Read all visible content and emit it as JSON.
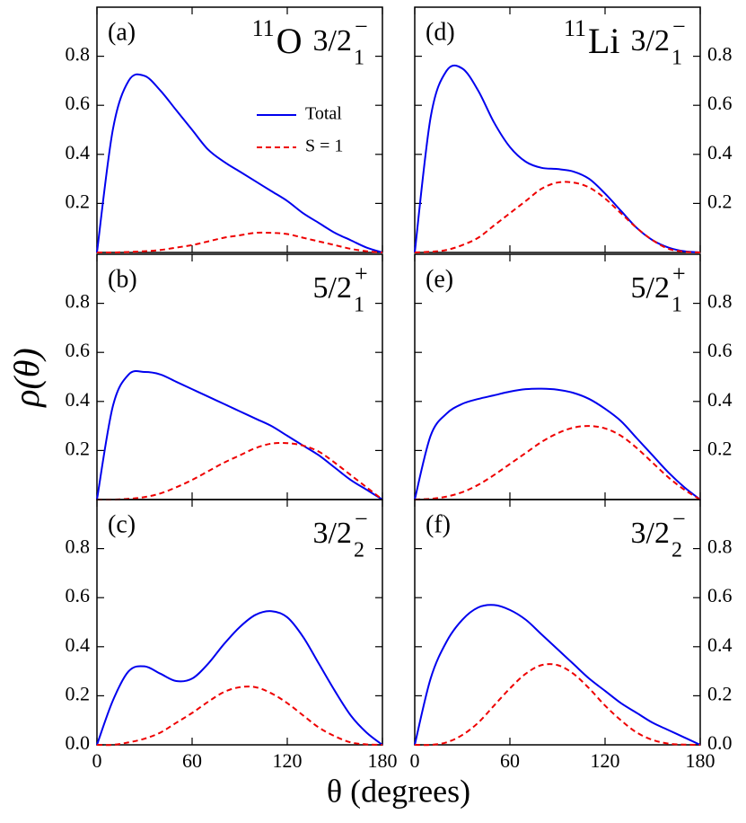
{
  "chart_data": [
    {
      "type": "line",
      "panel": "(a)",
      "nucleus": {
        "mass": "11",
        "symbol": "O"
      },
      "state": {
        "j": "3/2",
        "index": "1",
        "parity": "−"
      },
      "x": [
        0,
        10,
        20,
        30,
        40,
        50,
        60,
        70,
        80,
        90,
        100,
        110,
        120,
        130,
        140,
        150,
        160,
        170,
        180
      ],
      "series": [
        {
          "name": "Total",
          "color": "#0000ee",
          "dash": false,
          "values": [
            0,
            0.5,
            0.7,
            0.72,
            0.66,
            0.58,
            0.5,
            0.42,
            0.37,
            0.33,
            0.29,
            0.25,
            0.21,
            0.16,
            0.12,
            0.08,
            0.05,
            0.02,
            0
          ]
        },
        {
          "name": "S = 1",
          "color": "#ee0000",
          "dash": true,
          "values": [
            0,
            0,
            0.002,
            0.005,
            0.01,
            0.02,
            0.03,
            0.045,
            0.06,
            0.07,
            0.08,
            0.08,
            0.075,
            0.06,
            0.045,
            0.03,
            0.015,
            0.005,
            0
          ]
        }
      ],
      "xlim": [
        0,
        180
      ],
      "xticks": [
        0,
        60,
        120,
        180
      ],
      "xtick_labels": false,
      "ylim": [
        0,
        1.0
      ],
      "yticks": [
        0.2,
        0.4,
        0.6,
        0.8
      ],
      "yaxis_side": "left",
      "legend": "upper right"
    },
    {
      "type": "line",
      "panel": "(b)",
      "state": {
        "j": "5/2",
        "index": "1",
        "parity": "+"
      },
      "x": [
        0,
        10,
        20,
        30,
        40,
        50,
        60,
        70,
        80,
        90,
        100,
        110,
        120,
        130,
        140,
        150,
        160,
        170,
        180
      ],
      "series": [
        {
          "color": "#0000ee",
          "dash": false,
          "values": [
            0,
            0.38,
            0.51,
            0.52,
            0.51,
            0.48,
            0.45,
            0.42,
            0.39,
            0.36,
            0.33,
            0.3,
            0.26,
            0.22,
            0.18,
            0.13,
            0.08,
            0.04,
            0
          ]
        },
        {
          "color": "#ee0000",
          "dash": true,
          "values": [
            0,
            0,
            0.003,
            0.01,
            0.025,
            0.05,
            0.08,
            0.115,
            0.15,
            0.18,
            0.21,
            0.228,
            0.23,
            0.22,
            0.195,
            0.15,
            0.1,
            0.05,
            0
          ]
        }
      ],
      "xlim": [
        0,
        180
      ],
      "xticks": [
        0,
        60,
        120,
        180
      ],
      "xtick_labels": false,
      "ylim": [
        0,
        1.0
      ],
      "yticks": [
        0.2,
        0.4,
        0.6,
        0.8
      ],
      "yaxis_side": "left"
    },
    {
      "type": "line",
      "panel": "(c)",
      "state": {
        "j": "3/2",
        "index": "2",
        "parity": "−"
      },
      "x": [
        0,
        10,
        20,
        30,
        40,
        50,
        60,
        70,
        80,
        90,
        100,
        110,
        120,
        130,
        140,
        150,
        160,
        170,
        180
      ],
      "series": [
        {
          "color": "#0000ee",
          "dash": false,
          "values": [
            0,
            0.18,
            0.3,
            0.32,
            0.29,
            0.26,
            0.27,
            0.33,
            0.41,
            0.48,
            0.53,
            0.545,
            0.52,
            0.44,
            0.33,
            0.22,
            0.12,
            0.05,
            0
          ]
        },
        {
          "color": "#ee0000",
          "dash": true,
          "values": [
            0,
            0,
            0.01,
            0.025,
            0.05,
            0.09,
            0.13,
            0.175,
            0.215,
            0.235,
            0.235,
            0.21,
            0.17,
            0.12,
            0.07,
            0.035,
            0.01,
            0.002,
            0
          ]
        }
      ],
      "xlim": [
        0,
        180
      ],
      "xticks": [
        0,
        60,
        120,
        180
      ],
      "xtick_labels": true,
      "ylim": [
        0,
        1.0
      ],
      "yticks": [
        {
          "value": 0,
          "label": "0.0"
        },
        0.2,
        0.4,
        0.6,
        0.8
      ],
      "yaxis_side": "left"
    },
    {
      "type": "line",
      "panel": "(d)",
      "nucleus": {
        "mass": "11",
        "symbol": "Li"
      },
      "state": {
        "j": "3/2",
        "index": "1",
        "parity": "−"
      },
      "x": [
        0,
        10,
        20,
        30,
        40,
        50,
        60,
        70,
        80,
        90,
        100,
        110,
        120,
        130,
        140,
        150,
        160,
        170,
        180
      ],
      "series": [
        {
          "color": "#0000ee",
          "dash": false,
          "values": [
            0,
            0.55,
            0.74,
            0.75,
            0.66,
            0.53,
            0.43,
            0.37,
            0.345,
            0.34,
            0.33,
            0.3,
            0.24,
            0.17,
            0.1,
            0.05,
            0.02,
            0.005,
            0
          ]
        },
        {
          "color": "#ee0000",
          "dash": true,
          "values": [
            0,
            0.003,
            0.01,
            0.03,
            0.06,
            0.11,
            0.16,
            0.21,
            0.26,
            0.285,
            0.285,
            0.265,
            0.22,
            0.16,
            0.1,
            0.05,
            0.015,
            0.003,
            0
          ]
        }
      ],
      "xlim": [
        0,
        180
      ],
      "xticks": [
        0,
        60,
        120,
        180
      ],
      "xtick_labels": false,
      "ylim": [
        0,
        1.0
      ],
      "yticks": [
        0.2,
        0.4,
        0.6,
        0.8
      ],
      "yaxis_side": "right"
    },
    {
      "type": "line",
      "panel": "(e)",
      "state": {
        "j": "5/2",
        "index": "1",
        "parity": "+"
      },
      "x": [
        0,
        10,
        20,
        30,
        40,
        50,
        60,
        70,
        80,
        90,
        100,
        110,
        120,
        130,
        140,
        150,
        160,
        170,
        180
      ],
      "series": [
        {
          "color": "#0000ee",
          "dash": false,
          "values": [
            0,
            0.26,
            0.35,
            0.39,
            0.41,
            0.425,
            0.44,
            0.45,
            0.452,
            0.448,
            0.435,
            0.41,
            0.37,
            0.32,
            0.25,
            0.18,
            0.11,
            0.05,
            0
          ]
        },
        {
          "color": "#ee0000",
          "dash": true,
          "values": [
            0,
            0.003,
            0.012,
            0.03,
            0.06,
            0.1,
            0.145,
            0.19,
            0.235,
            0.27,
            0.293,
            0.3,
            0.29,
            0.26,
            0.21,
            0.15,
            0.09,
            0.04,
            0
          ]
        }
      ],
      "xlim": [
        0,
        180
      ],
      "xticks": [
        0,
        60,
        120,
        180
      ],
      "xtick_labels": false,
      "ylim": [
        0,
        1.0
      ],
      "yticks": [
        0.2,
        0.4,
        0.6,
        0.8
      ],
      "yaxis_side": "right"
    },
    {
      "type": "line",
      "panel": "(f)",
      "state": {
        "j": "3/2",
        "index": "2",
        "parity": "−"
      },
      "x": [
        0,
        10,
        20,
        30,
        40,
        50,
        60,
        70,
        80,
        90,
        100,
        110,
        120,
        130,
        140,
        150,
        160,
        170,
        180
      ],
      "series": [
        {
          "color": "#0000ee",
          "dash": false,
          "values": [
            0,
            0.27,
            0.42,
            0.51,
            0.56,
            0.57,
            0.55,
            0.51,
            0.45,
            0.39,
            0.33,
            0.27,
            0.22,
            0.17,
            0.13,
            0.09,
            0.06,
            0.03,
            0
          ]
        },
        {
          "color": "#ee0000",
          "dash": true,
          "values": [
            0,
            0,
            0.01,
            0.04,
            0.09,
            0.16,
            0.23,
            0.29,
            0.325,
            0.325,
            0.29,
            0.23,
            0.16,
            0.1,
            0.05,
            0.02,
            0.005,
            0.001,
            0
          ]
        }
      ],
      "xlim": [
        0,
        180
      ],
      "xticks": [
        0,
        60,
        120,
        180
      ],
      "xtick_labels": true,
      "ylim": [
        0,
        1.0
      ],
      "yticks": [
        {
          "value": 0,
          "label": "0.0"
        },
        0.2,
        0.4,
        0.6,
        0.8
      ],
      "yaxis_side": "right"
    }
  ],
  "xlabel": "θ (degrees)",
  "ylabel": "ρ(θ)"
}
